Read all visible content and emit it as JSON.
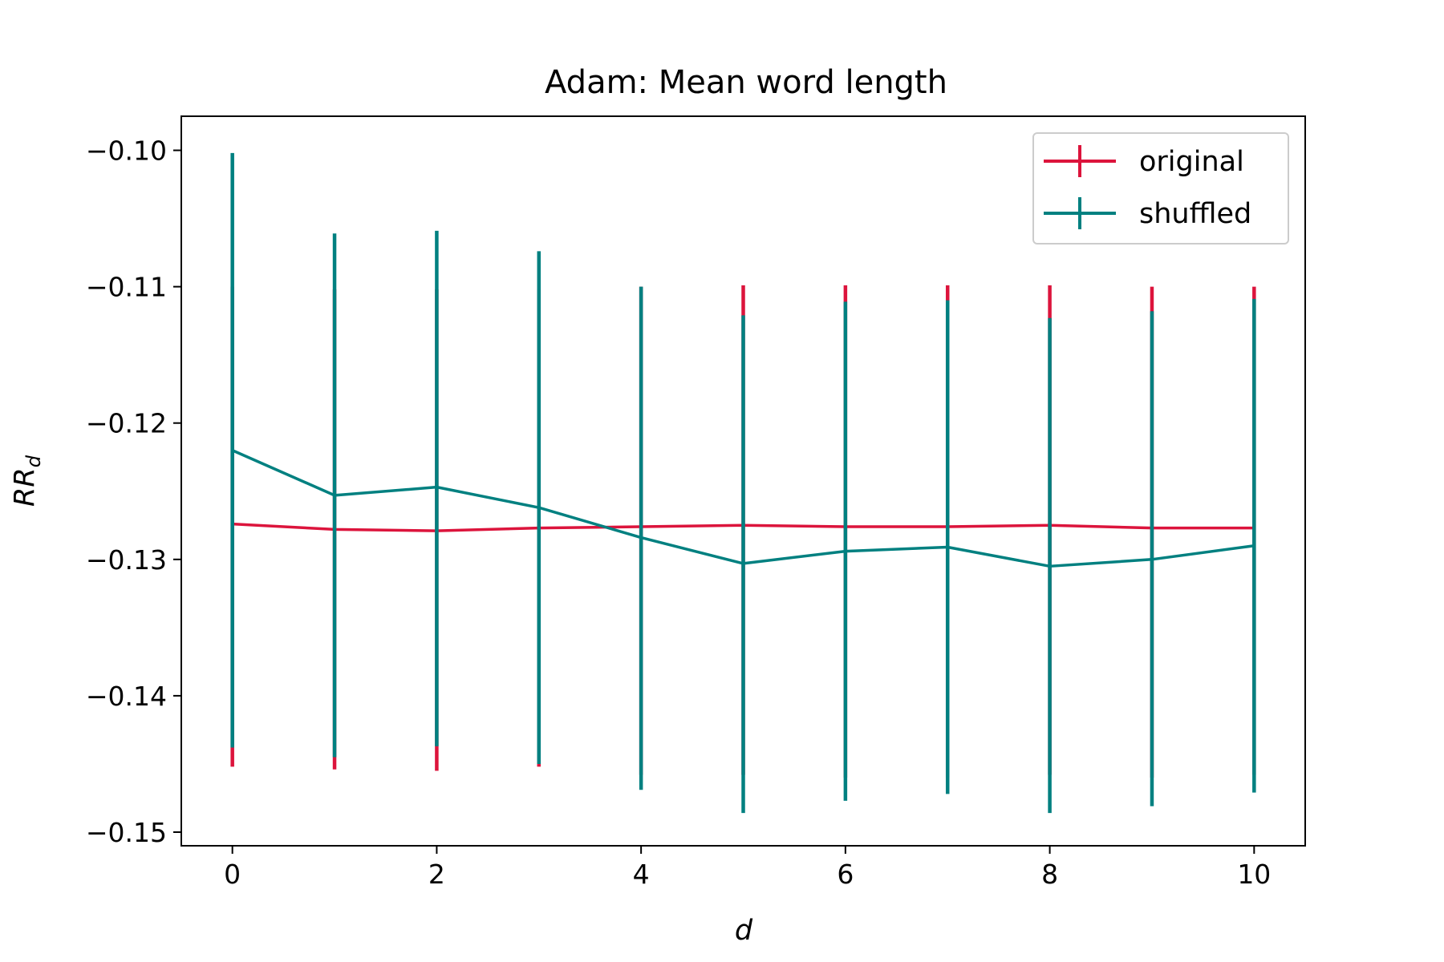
{
  "chart_data": {
    "type": "line",
    "title": "Adam: Mean word length",
    "xlabel": "d",
    "ylabel_main": "RR",
    "ylabel_sub": "d",
    "xlim": [
      -0.5,
      10.5
    ],
    "ylim": [
      -0.151,
      -0.0975
    ],
    "x_ticks": [
      0,
      2,
      4,
      6,
      8,
      10
    ],
    "x_tick_labels": [
      "0",
      "2",
      "4",
      "6",
      "8",
      "10"
    ],
    "y_ticks": [
      -0.1,
      -0.11,
      -0.12,
      -0.13,
      -0.14,
      -0.15
    ],
    "y_tick_labels": [
      "−0.10",
      "−0.11",
      "−0.12",
      "−0.13",
      "−0.14",
      "−0.15"
    ],
    "grid": false,
    "legend_position": "top-right",
    "x": [
      0,
      1,
      2,
      3,
      4,
      5,
      6,
      7,
      8,
      9,
      10
    ],
    "series": [
      {
        "name": "original",
        "color": "#dc143c",
        "values": [
          -0.1274,
          -0.1278,
          -0.1279,
          -0.1277,
          -0.1276,
          -0.1275,
          -0.1276,
          -0.1276,
          -0.1275,
          -0.1277,
          -0.1277
        ],
        "err_low": [
          -0.1452,
          -0.1454,
          -0.1455,
          -0.1452,
          -0.1458,
          -0.1458,
          -0.146,
          -0.146,
          -0.1458,
          -0.146,
          -0.1458
        ],
        "err_high": [
          -0.11,
          -0.1102,
          -0.1102,
          -0.1102,
          -0.11,
          -0.1099,
          -0.1099,
          -0.1099,
          -0.1099,
          -0.11,
          -0.11
        ]
      },
      {
        "name": "shuffled",
        "color": "#008080",
        "values": [
          -0.122,
          -0.1253,
          -0.1247,
          -0.1262,
          -0.1284,
          -0.1303,
          -0.1294,
          -0.1291,
          -0.1305,
          -0.13,
          -0.129
        ],
        "err_low": [
          -0.1438,
          -0.1445,
          -0.1437,
          -0.145,
          -0.1469,
          -0.1486,
          -0.1477,
          -0.1472,
          -0.1486,
          -0.1481,
          -0.1471
        ],
        "err_high": [
          -0.1002,
          -0.1061,
          -0.1059,
          -0.1074,
          -0.11,
          -0.1121,
          -0.1111,
          -0.111,
          -0.1123,
          -0.1118,
          -0.1109
        ]
      }
    ]
  }
}
